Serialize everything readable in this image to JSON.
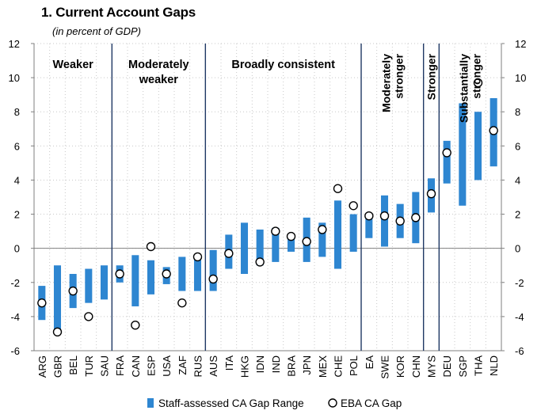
{
  "chart_data": {
    "type": "bar",
    "title": "1. Current Account Gaps",
    "subtitle": "(in percent of GDP)",
    "xlabel": "",
    "ylabel": "",
    "ylim": [
      -6,
      12
    ],
    "yticks": [
      -6,
      -4,
      -2,
      0,
      2,
      4,
      6,
      8,
      10,
      12
    ],
    "grid": "dotted",
    "legend_position": "bottom",
    "categories": [
      "ARG",
      "GBR",
      "BEL",
      "TUR",
      "SAU",
      "FRA",
      "CAN",
      "ESP",
      "USA",
      "ZAF",
      "RUS",
      "AUS",
      "ITA",
      "HKG",
      "IDN",
      "IND",
      "BRA",
      "JPN",
      "MEX",
      "CHE",
      "POL",
      "EA",
      "SWE",
      "KOR",
      "CHN",
      "MYS",
      "DEU",
      "SGP",
      "THA",
      "NLD"
    ],
    "series": [
      {
        "name": "Staff-assessed CA Gap Range",
        "type": "range-bar",
        "color": "#2e86d1",
        "low": [
          -4.2,
          -4.8,
          -3.5,
          -3.2,
          -3.0,
          -2.0,
          -3.4,
          -2.7,
          -2.1,
          -2.5,
          -2.5,
          -2.5,
          -1.2,
          -1.5,
          -1.0,
          -0.8,
          -0.2,
          -0.8,
          -0.5,
          -1.2,
          -0.2,
          0.6,
          0.1,
          0.6,
          0.3,
          2.1,
          3.8,
          2.5,
          4.0,
          4.8
        ],
        "high": [
          -2.2,
          -1.0,
          -1.5,
          -1.2,
          -1.0,
          -1.0,
          -0.4,
          -0.7,
          -1.1,
          -0.5,
          -0.5,
          -0.1,
          0.8,
          1.5,
          1.1,
          1.2,
          0.8,
          1.8,
          1.5,
          2.8,
          2.0,
          2.0,
          3.1,
          2.6,
          3.3,
          4.1,
          6.3,
          8.5,
          8.0,
          8.8
        ]
      },
      {
        "name": "EBA CA Gap",
        "type": "marker",
        "color": "#000000",
        "values": [
          -3.2,
          -4.9,
          -2.5,
          -4.0,
          null,
          -1.5,
          -4.5,
          0.1,
          -1.5,
          -3.2,
          -0.5,
          -1.8,
          -0.3,
          null,
          -0.8,
          1.0,
          0.7,
          0.4,
          1.1,
          3.5,
          2.5,
          1.9,
          1.9,
          1.6,
          1.8,
          3.2,
          5.6,
          null,
          9.7,
          6.9
        ]
      }
    ],
    "groups": [
      {
        "label": [
          "Weaker"
        ],
        "orientation": "horizontal",
        "from": 0,
        "to": 4
      },
      {
        "label": [
          "Moderately",
          "weaker"
        ],
        "orientation": "horizontal",
        "from": 5,
        "to": 10
      },
      {
        "label": [
          "Broadly consistent"
        ],
        "orientation": "horizontal",
        "from": 11,
        "to": 20
      },
      {
        "label": [
          "Moderately",
          "stronger"
        ],
        "orientation": "vertical",
        "from": 21,
        "to": 24
      },
      {
        "label": [
          "Stronger"
        ],
        "orientation": "vertical",
        "from": 25,
        "to": 25
      },
      {
        "label": [
          "Substantially",
          "stronger"
        ],
        "orientation": "vertical",
        "from": 26,
        "to": 29
      }
    ],
    "colors": {
      "bar": "#2e86d1",
      "divider": "#1f3864",
      "grid": "#c8c8c8",
      "axis": "#7f7f7f"
    }
  }
}
